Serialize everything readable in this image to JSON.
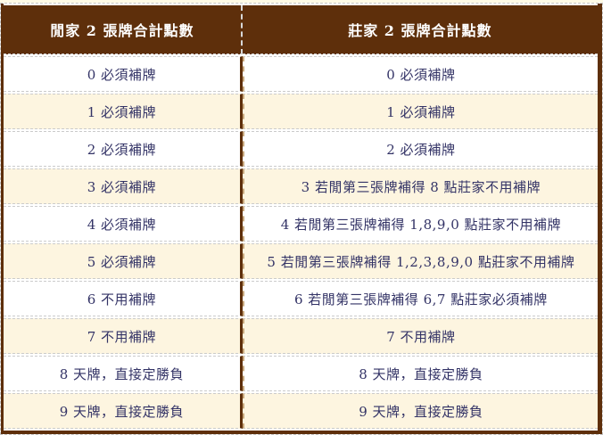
{
  "colors": {
    "frame_brown": "#5E2F0B",
    "header_bg": "#5E2F0B",
    "header_text": "#FFFFFF",
    "cell_text": "#333366",
    "row_bg": "#FFFFFF",
    "row_alt_bg": "#FDF5E0",
    "outer_dash_gray": "#C6C6C6",
    "divider_dash_tan": "#C9A97E",
    "top_strip": "#FFFBE6"
  },
  "table": {
    "headers": [
      "閒家 2 張牌合計點數",
      "莊家 2 張牌合計點數"
    ],
    "rows": [
      {
        "player": "0 必須補牌",
        "banker": "0 必須補牌"
      },
      {
        "player": "1 必須補牌",
        "banker": "1 必須補牌"
      },
      {
        "player": "2 必須補牌",
        "banker": "2 必須補牌"
      },
      {
        "player": "3 必須補牌",
        "banker": "3 若閒第三張牌補得 8 點莊家不用補牌"
      },
      {
        "player": "4 必須補牌",
        "banker": "4 若閒第三張牌補得 1,8,9,0 點莊家不用補牌"
      },
      {
        "player": "5 必須補牌",
        "banker": "5 若閒第三張牌補得 1,2,3,8,9,0 點莊家不用補牌"
      },
      {
        "player": "6 不用補牌",
        "banker": "6 若閒第三張牌補得 6,7 點莊家必須補牌"
      },
      {
        "player": "7 不用補牌",
        "banker": "7 不用補牌"
      },
      {
        "player": "8 天牌，直接定勝負",
        "banker": "8 天牌，直接定勝負"
      },
      {
        "player": "9 天牌，直接定勝負",
        "banker": "9 天牌，直接定勝負"
      }
    ]
  }
}
